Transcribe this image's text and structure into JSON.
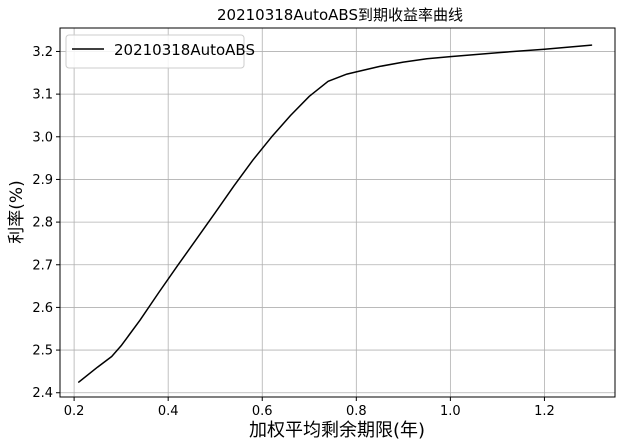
{
  "chart_data": {
    "type": "line",
    "title": "20210318AutoABS到期收益率曲线",
    "xlabel": "加权平均剩余期限(年)",
    "ylabel": "利率(%)",
    "xlim": [
      0.17,
      1.35
    ],
    "ylim": [
      2.39,
      3.255
    ],
    "xticks": [
      0.2,
      0.4,
      0.6,
      0.8,
      1.0,
      1.2
    ],
    "xtick_labels": [
      "0.2",
      "0.4",
      "0.6",
      "0.8",
      "1.0",
      "1.2"
    ],
    "yticks": [
      2.4,
      2.5,
      2.6,
      2.7,
      2.8,
      2.9,
      3.0,
      3.1,
      3.2
    ],
    "ytick_labels": [
      "2.4",
      "2.5",
      "2.6",
      "2.7",
      "2.8",
      "2.9",
      "3.0",
      "3.1",
      "3.2"
    ],
    "grid": true,
    "legend": "top-left",
    "series": [
      {
        "name": "20210318AutoABS",
        "color": "#000000",
        "x": [
          0.21,
          0.25,
          0.28,
          0.3,
          0.34,
          0.38,
          0.42,
          0.46,
          0.5,
          0.54,
          0.58,
          0.62,
          0.66,
          0.7,
          0.74,
          0.78,
          0.8,
          0.85,
          0.9,
          0.95,
          1.0,
          1.1,
          1.2,
          1.3
        ],
        "y": [
          2.425,
          2.46,
          2.485,
          2.51,
          2.57,
          2.635,
          2.698,
          2.76,
          2.822,
          2.885,
          2.945,
          3.0,
          3.05,
          3.095,
          3.13,
          3.147,
          3.152,
          3.165,
          3.175,
          3.183,
          3.188,
          3.197,
          3.205,
          3.215
        ]
      }
    ]
  }
}
